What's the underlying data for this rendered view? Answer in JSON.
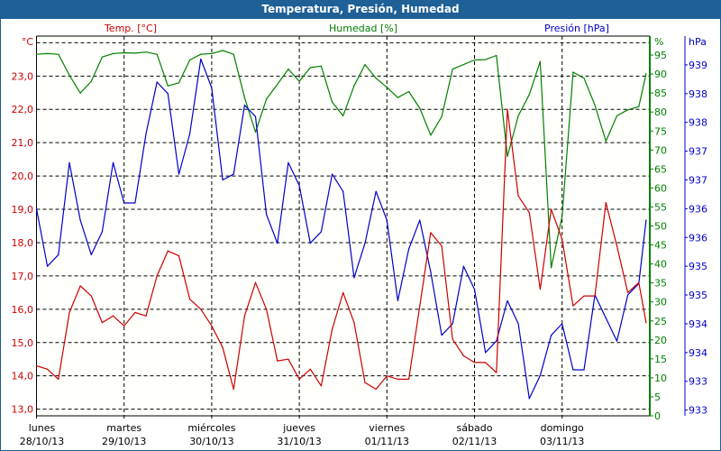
{
  "window": {
    "title": "Temperatura, Presión, Humedad"
  },
  "chart_data": {
    "type": "line",
    "title": "Temperatura, Presión, Humedad",
    "x_labels": [
      {
        "day": "lunes",
        "date": "28/10/13"
      },
      {
        "day": "martes",
        "date": "29/10/13"
      },
      {
        "day": "miércoles",
        "date": "30/10/13"
      },
      {
        "day": "jueves",
        "date": "31/10/13"
      },
      {
        "day": "viernes",
        "date": "01/11/13"
      },
      {
        "day": "sábado",
        "date": "02/11/13"
      },
      {
        "day": "domingo",
        "date": "03/11/13"
      }
    ],
    "grid": true,
    "colors": {
      "temperature": "#cc0000",
      "humidity": "#008000",
      "pressure": "#0000cc"
    },
    "axes": {
      "temperature": {
        "label": "Temp. [°C]",
        "unit": "°C",
        "range": [
          12.8,
          24.2
        ],
        "ticks": [
          "23,0",
          "22,0",
          "21,0",
          "20,0",
          "19,0",
          "18,0",
          "17,0",
          "16,0",
          "15,0",
          "14,0",
          "13,0"
        ],
        "tick_values": [
          23,
          22,
          21,
          20,
          19,
          18,
          17,
          16,
          15,
          14,
          13
        ]
      },
      "humidity": {
        "label": "Humedad [%]",
        "unit": "%",
        "range": [
          0,
          100
        ],
        "ticks": [
          "95",
          "90",
          "85",
          "80",
          "75",
          "70",
          "65",
          "60",
          "55",
          "50",
          "45",
          "40",
          "35",
          "30",
          "25",
          "20",
          "15",
          "10",
          "5",
          "0"
        ],
        "tick_values": [
          95,
          90,
          85,
          80,
          75,
          70,
          65,
          60,
          55,
          50,
          45,
          40,
          35,
          30,
          25,
          20,
          15,
          10,
          5,
          0
        ]
      },
      "pressure": {
        "label": "Presión [hPa]",
        "unit": "hPa",
        "range": [
          932.9,
          939.5
        ],
        "ticks": [
          "939",
          "938",
          "938",
          "937",
          "937",
          "936",
          "936",
          "935",
          "935",
          "934",
          "934",
          "933",
          "933"
        ],
        "tick_values": [
          939,
          938.5,
          938,
          937.5,
          937,
          936.5,
          936,
          935.5,
          935,
          934.5,
          934,
          933.5,
          933
        ]
      }
    },
    "x": [
      "28/10/13 00:00",
      "28/10/13 03:00",
      "28/10/13 06:00",
      "28/10/13 09:00",
      "28/10/13 12:00",
      "28/10/13 15:00",
      "28/10/13 18:00",
      "28/10/13 21:00",
      "29/10/13 00:00",
      "29/10/13 03:00",
      "29/10/13 06:00",
      "29/10/13 09:00",
      "29/10/13 12:00",
      "29/10/13 15:00",
      "29/10/13 18:00",
      "29/10/13 21:00",
      "30/10/13 00:00",
      "30/10/13 03:00",
      "30/10/13 06:00",
      "30/10/13 09:00",
      "30/10/13 12:00",
      "30/10/13 15:00",
      "30/10/13 18:00",
      "30/10/13 21:00",
      "31/10/13 00:00",
      "31/10/13 03:00",
      "31/10/13 06:00",
      "31/10/13 09:00",
      "31/10/13 12:00",
      "31/10/13 15:00",
      "31/10/13 18:00",
      "31/10/13 21:00",
      "01/11/13 00:00",
      "01/11/13 03:00",
      "01/11/13 06:00",
      "01/11/13 09:00",
      "01/11/13 12:00",
      "01/11/13 15:00",
      "01/11/13 18:00",
      "01/11/13 21:00",
      "02/11/13 00:00",
      "02/11/13 03:00",
      "02/11/13 06:00",
      "02/11/13 09:00",
      "02/11/13 12:00",
      "02/11/13 15:00",
      "02/11/13 18:00",
      "02/11/13 21:00",
      "03/11/13 00:00",
      "03/11/13 03:00",
      "03/11/13 06:00",
      "03/11/13 09:00",
      "03/11/13 12:00",
      "03/11/13 15:00",
      "03/11/13 18:00",
      "03/11/13 21:00",
      "03/11/13 23:00"
    ],
    "series": [
      {
        "name": "Temp. [°C]",
        "axis": "temperature",
        "values": [
          14.3,
          14.2,
          13.9,
          15.9,
          16.7,
          16.4,
          15.6,
          15.8,
          15.5,
          15.9,
          15.8,
          17.0,
          17.75,
          17.6,
          16.3,
          16.0,
          15.5,
          14.85,
          13.6,
          15.8,
          16.8,
          16.0,
          14.45,
          14.5,
          13.9,
          14.2,
          13.7,
          15.4,
          16.5,
          15.6,
          13.8,
          13.6,
          14.0,
          13.9,
          13.9,
          16.1,
          18.3,
          17.9,
          15.1,
          14.6,
          14.4,
          14.4,
          14.1,
          22.0,
          19.4,
          18.9,
          16.6,
          19.0,
          18.1,
          16.1,
          16.4,
          16.4,
          19.2,
          17.9,
          16.5,
          16.8,
          15.6
        ]
      },
      {
        "name": "Humedad [%]",
        "axis": "humidity",
        "values": [
          95.2,
          95.4,
          95.2,
          89.7,
          85.0,
          88.1,
          94.5,
          95.4,
          95.6,
          95.5,
          95.8,
          95.2,
          86.9,
          87.7,
          93.7,
          95.2,
          95.4,
          96.2,
          95.2,
          83.8,
          74.7,
          83.4,
          87.3,
          91.3,
          88.1,
          91.7,
          92.1,
          82.6,
          79.0,
          86.9,
          92.5,
          88.9,
          86.5,
          83.8,
          85.4,
          81.0,
          73.9,
          78.8,
          91.3,
          92.5,
          93.7,
          93.8,
          94.9,
          68.3,
          79.0,
          84.6,
          93.3,
          39.0,
          52.5,
          90.5,
          88.9,
          81.8,
          72.3,
          79.0,
          80.6,
          81.4,
          90.1
        ]
      },
      {
        "name": "Presión [hPa]",
        "axis": "pressure",
        "values": [
          936.5,
          935.5,
          935.7,
          937.3,
          936.3,
          935.7,
          936.1,
          937.3,
          936.6,
          936.6,
          937.8,
          938.7,
          938.5,
          937.1,
          937.8,
          939.1,
          938.6,
          937.0,
          937.1,
          938.3,
          938.1,
          936.4,
          935.9,
          937.3,
          936.9,
          935.9,
          936.1,
          937.1,
          936.8,
          935.3,
          935.9,
          936.8,
          936.3,
          934.9,
          935.8,
          936.3,
          935.4,
          934.3,
          934.5,
          935.5,
          935.1,
          934.0,
          934.2,
          934.9,
          934.5,
          933.2,
          933.6,
          934.3,
          934.5,
          933.7,
          933.7,
          935.0,
          934.6,
          934.2,
          935.0,
          935.2,
          936.3
        ]
      }
    ]
  }
}
